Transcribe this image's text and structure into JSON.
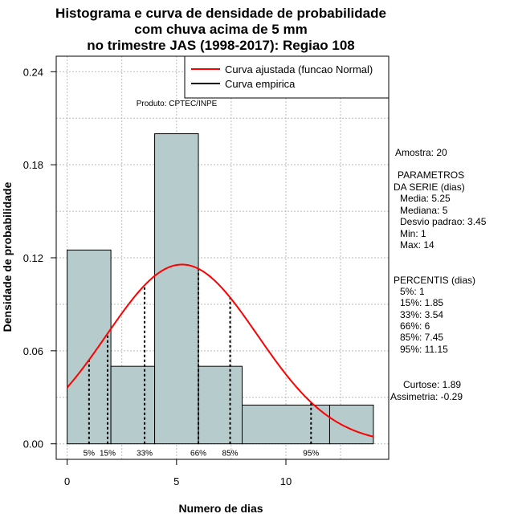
{
  "chart_data": {
    "type": "histogram",
    "title": [
      "Histograma e curva de densidade de probabilidade",
      "com chuva acima de 5 mm",
      "no trimestre JAS (1998-2017): Regiao 108"
    ],
    "xlabel": "Numero de dias",
    "ylabel": "Densidade de probabilidade",
    "xlim": [
      -0.5,
      14.7
    ],
    "ylim": [
      -0.01,
      0.25
    ],
    "x_ticks": [
      0,
      5,
      10
    ],
    "y_ticks": [
      0.0,
      0.06,
      0.12,
      0.18,
      0.24
    ],
    "y_tick_labels": [
      "0.00",
      "0.06",
      "0.12",
      "0.18",
      "0.24"
    ],
    "grid": true,
    "bins": [
      {
        "start": 0,
        "end": 2,
        "density": 0.125
      },
      {
        "start": 2,
        "end": 4,
        "density": 0.05
      },
      {
        "start": 4,
        "end": 6,
        "density": 0.2
      },
      {
        "start": 6,
        "end": 8,
        "density": 0.05
      },
      {
        "start": 8,
        "end": 12,
        "density": 0.025
      },
      {
        "start": 12,
        "end": 14,
        "density": 0.025
      }
    ],
    "normal_fit": {
      "mean": 5.25,
      "sd": 3.45,
      "x_range": [
        0,
        14
      ]
    },
    "percentiles": [
      {
        "label": "5%",
        "x": 1
      },
      {
        "label": "15%",
        "x": 1.85
      },
      {
        "label": "33%",
        "x": 3.54
      },
      {
        "label": "66%",
        "x": 6
      },
      {
        "label": "85%",
        "x": 7.45
      },
      {
        "label": "95%",
        "x": 11.15
      }
    ],
    "legend": {
      "placement": "top-right",
      "entries": [
        {
          "label": "Curva ajustada (funcao Normal)",
          "color": "#ff0000"
        },
        {
          "label": "Curva empirica",
          "color": "#000000"
        }
      ]
    },
    "annotation": "Produto: CPTEC/INPE",
    "colors": {
      "bar_fill": "#b6cccc",
      "bar_stroke": "#000000",
      "curve": "#ff0000",
      "grid": "#bbbbbb"
    }
  },
  "stats": {
    "sample": "Amostra: 20",
    "params_title_1": "PARAMETROS",
    "params_title_2": "DA SERIE (dias)",
    "media": "Media: 5.25",
    "mediana": "Mediana: 5",
    "desvio": "Desvio padrao: 3.45",
    "min": "Min: 1",
    "max": "Max: 14",
    "percentis_title": "PERCENTIS (dias)",
    "p5": "5%: 1",
    "p15": "15%: 1.85",
    "p33": "33%: 3.54",
    "p66": "66%: 6",
    "p85": "85%: 7.45",
    "p95": "95%: 11.15",
    "curtose": "Curtose: 1.89",
    "assimetria": "Assimetria: -0.29"
  }
}
